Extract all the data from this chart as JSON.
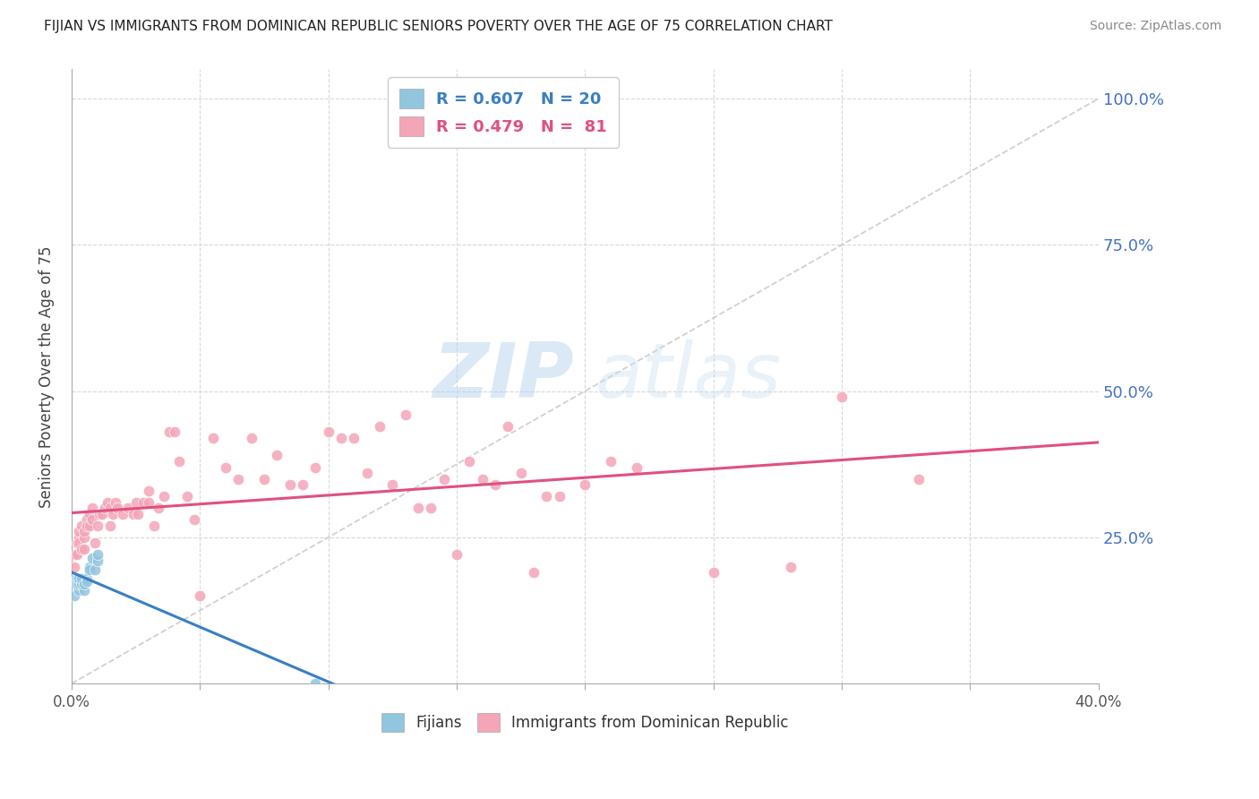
{
  "title": "FIJIAN VS IMMIGRANTS FROM DOMINICAN REPUBLIC SENIORS POVERTY OVER THE AGE OF 75 CORRELATION CHART",
  "source": "Source: ZipAtlas.com",
  "ylabel": "Seniors Poverty Over the Age of 75",
  "right_yticks": [
    "100.0%",
    "75.0%",
    "50.0%",
    "25.0%"
  ],
  "right_ytick_vals": [
    1.0,
    0.75,
    0.5,
    0.25
  ],
  "fijian_color": "#92c5de",
  "dominican_color": "#f4a5b8",
  "fijian_line_color": "#3a7fc1",
  "dominican_line_color": "#e05080",
  "diagonal_color": "#c8c8c8",
  "legend_fijian_R": "0.607",
  "legend_fijian_N": "20",
  "legend_dominican_R": "0.479",
  "legend_dominican_N": "81",
  "fijian_x": [
    0.001,
    0.001,
    0.002,
    0.002,
    0.003,
    0.003,
    0.003,
    0.004,
    0.004,
    0.005,
    0.005,
    0.006,
    0.006,
    0.007,
    0.007,
    0.008,
    0.009,
    0.01,
    0.01,
    0.095
  ],
  "fijian_y": [
    0.17,
    0.15,
    0.18,
    0.17,
    0.16,
    0.17,
    0.18,
    0.17,
    0.18,
    0.16,
    0.17,
    0.18,
    0.175,
    0.2,
    0.195,
    0.215,
    0.195,
    0.21,
    0.22,
    0.0
  ],
  "dominican_x": [
    0.001,
    0.001,
    0.002,
    0.002,
    0.003,
    0.003,
    0.003,
    0.004,
    0.004,
    0.005,
    0.005,
    0.005,
    0.006,
    0.006,
    0.007,
    0.007,
    0.008,
    0.008,
    0.009,
    0.01,
    0.011,
    0.012,
    0.013,
    0.014,
    0.015,
    0.015,
    0.016,
    0.017,
    0.018,
    0.02,
    0.022,
    0.024,
    0.025,
    0.026,
    0.028,
    0.03,
    0.03,
    0.032,
    0.034,
    0.036,
    0.038,
    0.04,
    0.042,
    0.045,
    0.048,
    0.05,
    0.055,
    0.06,
    0.065,
    0.07,
    0.075,
    0.08,
    0.085,
    0.09,
    0.095,
    0.1,
    0.105,
    0.11,
    0.115,
    0.12,
    0.125,
    0.13,
    0.135,
    0.14,
    0.145,
    0.15,
    0.155,
    0.16,
    0.165,
    0.17,
    0.175,
    0.18,
    0.185,
    0.19,
    0.2,
    0.21,
    0.22,
    0.25,
    0.28,
    0.3,
    0.33
  ],
  "dominican_y": [
    0.22,
    0.2,
    0.24,
    0.22,
    0.25,
    0.24,
    0.26,
    0.23,
    0.27,
    0.23,
    0.25,
    0.26,
    0.28,
    0.27,
    0.27,
    0.29,
    0.28,
    0.3,
    0.24,
    0.27,
    0.29,
    0.29,
    0.3,
    0.31,
    0.27,
    0.3,
    0.29,
    0.31,
    0.3,
    0.29,
    0.3,
    0.29,
    0.31,
    0.29,
    0.31,
    0.31,
    0.33,
    0.27,
    0.3,
    0.32,
    0.43,
    0.43,
    0.38,
    0.32,
    0.28,
    0.15,
    0.42,
    0.37,
    0.35,
    0.42,
    0.35,
    0.39,
    0.34,
    0.34,
    0.37,
    0.43,
    0.42,
    0.42,
    0.36,
    0.44,
    0.34,
    0.46,
    0.3,
    0.3,
    0.35,
    0.22,
    0.38,
    0.35,
    0.34,
    0.44,
    0.36,
    0.19,
    0.32,
    0.32,
    0.34,
    0.38,
    0.37,
    0.19,
    0.2,
    0.49,
    0.35
  ],
  "xlim": [
    0.0,
    0.4
  ],
  "ylim": [
    0.0,
    1.05
  ],
  "watermark_zip": "ZIP",
  "watermark_atlas": "atlas",
  "background_color": "#ffffff",
  "grid_color": "#d8d8d8"
}
